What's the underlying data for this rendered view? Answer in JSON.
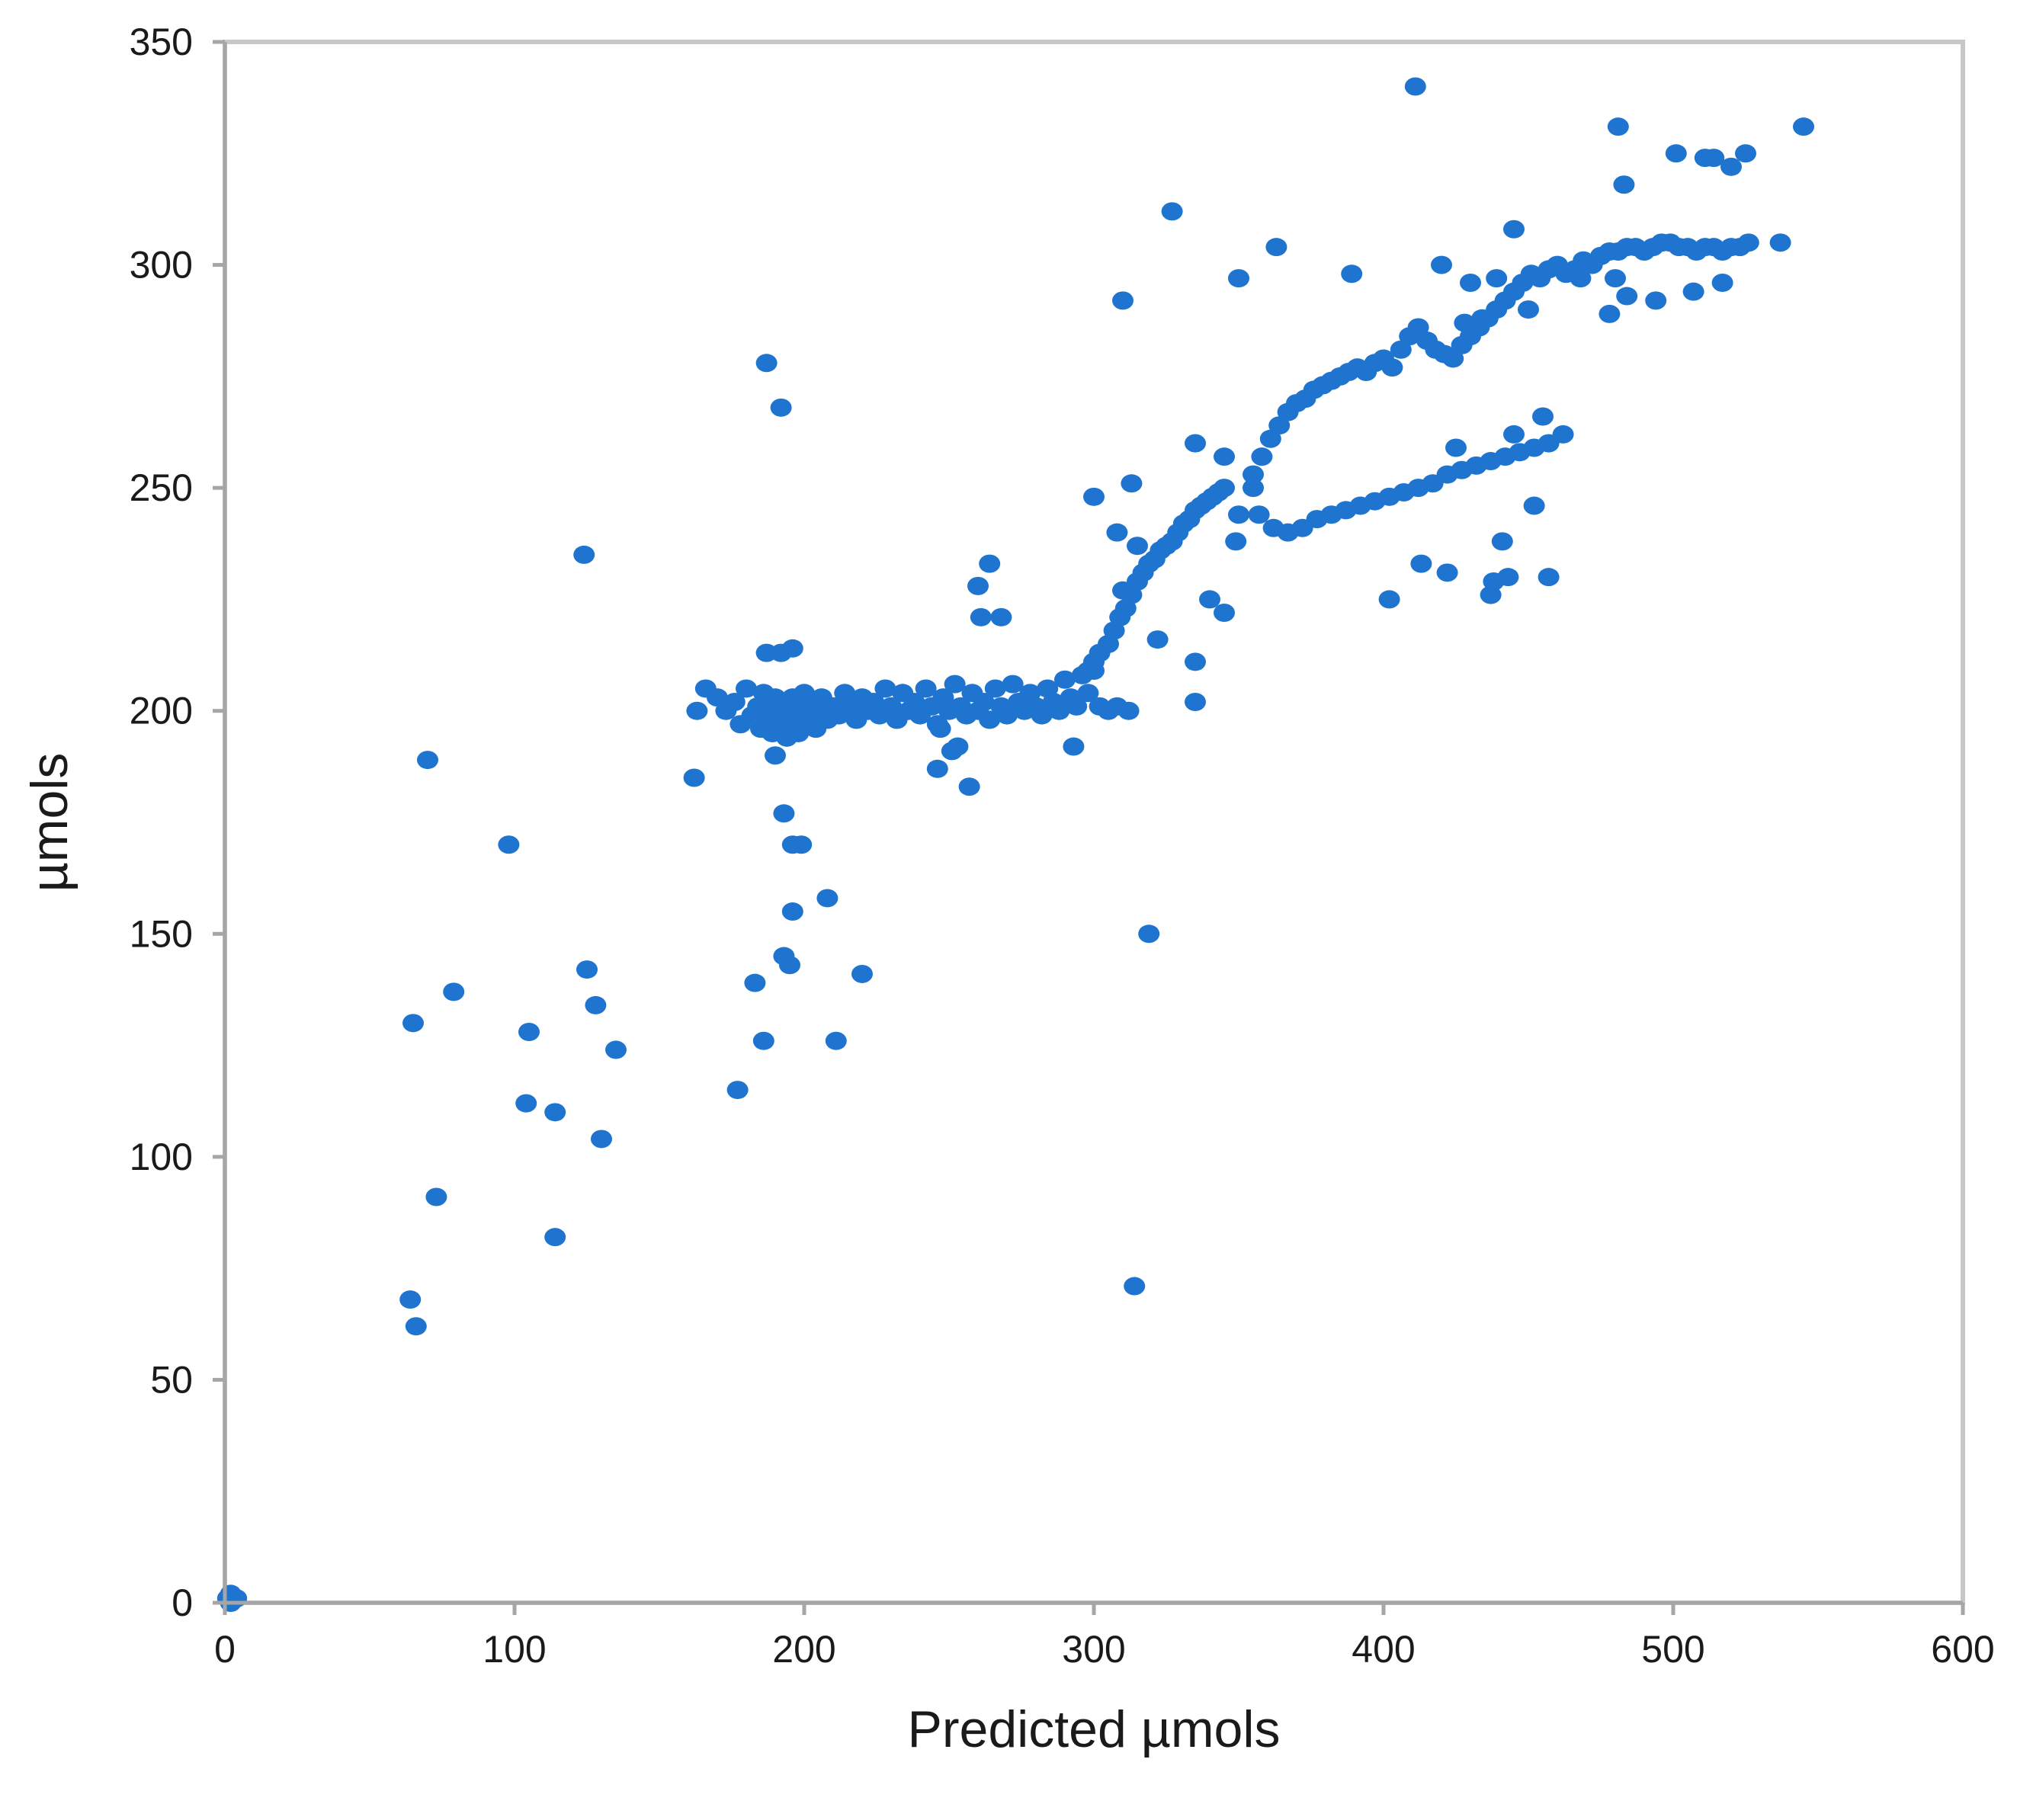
{
  "chart_data": {
    "type": "scatter",
    "title": "",
    "xlabel": "Predicted µmols",
    "ylabel": "µmols",
    "xlim": [
      0,
      600
    ],
    "ylim": [
      0,
      350
    ],
    "x_ticks": [
      "0",
      "100",
      "200",
      "300",
      "400",
      "500",
      "600"
    ],
    "y_ticks": [
      "0",
      "50",
      "100",
      "150",
      "200",
      "250",
      "300",
      "350"
    ],
    "x_tick_values": [
      0,
      100,
      200,
      300,
      400,
      500,
      600
    ],
    "y_tick_values": [
      0,
      50,
      100,
      150,
      200,
      250,
      300,
      350
    ],
    "grid": false,
    "legend": "none",
    "marker_color": "#1f74cf",
    "series": [
      {
        "points": [
          [
            1,
            1
          ],
          [
            2,
            2
          ],
          [
            3,
            1
          ],
          [
            4,
            1
          ],
          [
            2,
            0
          ],
          [
            64,
            68
          ],
          [
            66,
            62
          ],
          [
            65,
            130
          ],
          [
            70,
            189
          ],
          [
            73,
            91
          ],
          [
            79,
            137
          ],
          [
            98,
            170
          ],
          [
            104,
            112
          ],
          [
            105,
            128
          ],
          [
            114,
            82
          ],
          [
            114,
            110
          ],
          [
            124,
            235
          ],
          [
            125,
            142
          ],
          [
            128,
            134
          ],
          [
            130,
            104
          ],
          [
            135,
            124
          ],
          [
            162,
            185
          ],
          [
            163,
            200
          ],
          [
            166,
            205
          ],
          [
            177,
            115
          ],
          [
            183,
            139
          ],
          [
            186,
            126
          ],
          [
            187,
            278
          ],
          [
            192,
            268
          ],
          [
            193,
            177
          ],
          [
            193,
            145
          ],
          [
            195,
            143
          ],
          [
            196,
            155
          ],
          [
            196,
            170
          ],
          [
            199,
            170
          ],
          [
            208,
            158
          ],
          [
            211,
            126
          ],
          [
            220,
            141
          ],
          [
            170,
            203
          ],
          [
            173,
            200
          ],
          [
            176,
            202
          ],
          [
            178,
            197
          ],
          [
            180,
            205
          ],
          [
            182,
            199
          ],
          [
            184,
            201
          ],
          [
            185,
            196
          ],
          [
            186,
            204
          ],
          [
            187,
            198
          ],
          [
            188,
            201
          ],
          [
            189,
            195
          ],
          [
            190,
            203
          ],
          [
            191,
            199
          ],
          [
            192,
            197
          ],
          [
            193,
            202
          ],
          [
            194,
            194
          ],
          [
            195,
            200
          ],
          [
            196,
            203
          ],
          [
            197,
            198
          ],
          [
            198,
            195
          ],
          [
            199,
            201
          ],
          [
            200,
            204
          ],
          [
            201,
            197
          ],
          [
            202,
            199
          ],
          [
            203,
            202
          ],
          [
            204,
            196
          ],
          [
            205,
            200
          ],
          [
            206,
            203
          ],
          [
            208,
            198
          ],
          [
            210,
            201
          ],
          [
            212,
            199
          ],
          [
            214,
            204
          ],
          [
            216,
            201
          ],
          [
            218,
            198
          ],
          [
            220,
            203
          ],
          [
            222,
            200
          ],
          [
            224,
            202
          ],
          [
            226,
            199
          ],
          [
            228,
            205
          ],
          [
            230,
            201
          ],
          [
            232,
            198
          ],
          [
            234,
            204
          ],
          [
            236,
            200
          ],
          [
            238,
            202
          ],
          [
            240,
            199
          ],
          [
            242,
            205
          ],
          [
            244,
            201
          ],
          [
            246,
            197
          ],
          [
            248,
            203
          ],
          [
            250,
            200
          ],
          [
            252,
            206
          ],
          [
            254,
            201
          ],
          [
            256,
            199
          ],
          [
            258,
            204
          ],
          [
            260,
            200
          ],
          [
            262,
            202
          ],
          [
            264,
            198
          ],
          [
            266,
            205
          ],
          [
            268,
            201
          ],
          [
            270,
            199
          ],
          [
            272,
            206
          ],
          [
            274,
            202
          ],
          [
            276,
            200
          ],
          [
            278,
            204
          ],
          [
            280,
            201
          ],
          [
            282,
            199
          ],
          [
            284,
            205
          ],
          [
            286,
            202
          ],
          [
            288,
            200
          ],
          [
            290,
            207
          ],
          [
            292,
            203
          ],
          [
            294,
            201
          ],
          [
            296,
            208
          ],
          [
            298,
            204
          ],
          [
            300,
            209
          ],
          [
            302,
            201
          ],
          [
            305,
            200
          ],
          [
            308,
            201
          ],
          [
            312,
            200
          ],
          [
            187,
            213
          ],
          [
            190,
            190
          ],
          [
            192,
            213
          ],
          [
            196,
            214
          ],
          [
            246,
            187
          ],
          [
            247,
            196
          ],
          [
            251,
            191
          ],
          [
            253,
            192
          ],
          [
            257,
            183
          ],
          [
            260,
            228
          ],
          [
            261,
            221
          ],
          [
            264,
            233
          ],
          [
            268,
            221
          ],
          [
            293,
            192
          ],
          [
            298,
            209
          ],
          [
            300,
            211
          ],
          [
            302,
            213
          ],
          [
            305,
            215
          ],
          [
            307,
            218
          ],
          [
            309,
            221
          ],
          [
            311,
            223
          ],
          [
            313,
            226
          ],
          [
            315,
            229
          ],
          [
            317,
            231
          ],
          [
            319,
            233
          ],
          [
            321,
            234
          ],
          [
            323,
            236
          ],
          [
            325,
            237
          ],
          [
            327,
            238
          ],
          [
            329,
            240
          ],
          [
            331,
            242
          ],
          [
            333,
            243
          ],
          [
            335,
            245
          ],
          [
            337,
            246
          ],
          [
            339,
            247
          ],
          [
            341,
            248
          ],
          [
            343,
            249
          ],
          [
            345,
            250
          ],
          [
            300,
            248
          ],
          [
            308,
            240
          ],
          [
            310,
            227
          ],
          [
            310,
            292
          ],
          [
            313,
            251
          ],
          [
            315,
            237
          ],
          [
            319,
            150
          ],
          [
            314,
            71
          ],
          [
            322,
            216
          ],
          [
            327,
            312
          ],
          [
            335,
            260
          ],
          [
            335,
            211
          ],
          [
            335,
            202
          ],
          [
            340,
            225
          ],
          [
            345,
            222
          ],
          [
            350,
            297
          ],
          [
            345,
            257
          ],
          [
            349,
            238
          ],
          [
            350,
            244
          ],
          [
            355,
            250
          ],
          [
            355,
            253
          ],
          [
            358,
            257
          ],
          [
            361,
            261
          ],
          [
            364,
            264
          ],
          [
            367,
            267
          ],
          [
            370,
            269
          ],
          [
            373,
            270
          ],
          [
            376,
            272
          ],
          [
            379,
            273
          ],
          [
            382,
            274
          ],
          [
            385,
            275
          ],
          [
            388,
            276
          ],
          [
            391,
            277
          ],
          [
            394,
            276
          ],
          [
            397,
            278
          ],
          [
            400,
            279
          ],
          [
            403,
            277
          ],
          [
            406,
            281
          ],
          [
            409,
            284
          ],
          [
            412,
            286
          ],
          [
            415,
            283
          ],
          [
            418,
            281
          ],
          [
            421,
            280
          ],
          [
            424,
            279
          ],
          [
            427,
            282
          ],
          [
            430,
            284
          ],
          [
            433,
            286
          ],
          [
            436,
            288
          ],
          [
            439,
            290
          ],
          [
            442,
            292
          ],
          [
            445,
            294
          ],
          [
            448,
            296
          ],
          [
            451,
            298
          ],
          [
            454,
            297
          ],
          [
            457,
            299
          ],
          [
            460,
            300
          ],
          [
            463,
            298
          ],
          [
            466,
            299
          ],
          [
            469,
            301
          ],
          [
            472,
            300
          ],
          [
            475,
            302
          ],
          [
            478,
            303
          ],
          [
            481,
            303
          ],
          [
            484,
            304
          ],
          [
            487,
            304
          ],
          [
            490,
            303
          ],
          [
            493,
            304
          ],
          [
            496,
            305
          ],
          [
            499,
            305
          ],
          [
            502,
            304
          ],
          [
            505,
            304
          ],
          [
            508,
            303
          ],
          [
            511,
            304
          ],
          [
            514,
            304
          ],
          [
            517,
            303
          ],
          [
            520,
            304
          ],
          [
            523,
            304
          ],
          [
            526,
            305
          ],
          [
            357,
            244
          ],
          [
            362,
            241
          ],
          [
            367,
            240
          ],
          [
            372,
            241
          ],
          [
            377,
            243
          ],
          [
            382,
            244
          ],
          [
            387,
            245
          ],
          [
            392,
            246
          ],
          [
            397,
            247
          ],
          [
            402,
            248
          ],
          [
            407,
            249
          ],
          [
            412,
            250
          ],
          [
            417,
            251
          ],
          [
            422,
            253
          ],
          [
            427,
            254
          ],
          [
            432,
            255
          ],
          [
            437,
            256
          ],
          [
            442,
            257
          ],
          [
            447,
            258
          ],
          [
            452,
            259
          ],
          [
            457,
            260
          ],
          [
            462,
            262
          ],
          [
            363,
            304
          ],
          [
            389,
            298
          ],
          [
            402,
            225
          ],
          [
            411,
            340
          ],
          [
            413,
            233
          ],
          [
            420,
            300
          ],
          [
            422,
            231
          ],
          [
            425,
            259
          ],
          [
            428,
            287
          ],
          [
            430,
            296
          ],
          [
            434,
            288
          ],
          [
            437,
            226
          ],
          [
            438,
            229
          ],
          [
            439,
            297
          ],
          [
            441,
            238
          ],
          [
            443,
            230
          ],
          [
            445,
            262
          ],
          [
            445,
            308
          ],
          [
            450,
            290
          ],
          [
            452,
            246
          ],
          [
            455,
            266
          ],
          [
            457,
            230
          ],
          [
            468,
            297
          ],
          [
            478,
            289
          ],
          [
            480,
            297
          ],
          [
            481,
            331
          ],
          [
            483,
            318
          ],
          [
            484,
            293
          ],
          [
            494,
            292
          ],
          [
            501,
            325
          ],
          [
            507,
            294
          ],
          [
            511,
            324
          ],
          [
            514,
            324
          ],
          [
            517,
            296
          ],
          [
            520,
            322
          ],
          [
            525,
            325
          ],
          [
            537,
            305
          ],
          [
            545,
            331
          ]
        ]
      }
    ]
  }
}
